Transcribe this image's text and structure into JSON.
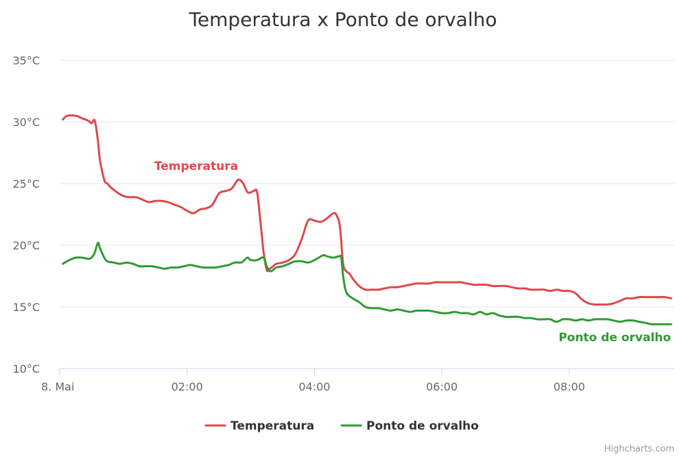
{
  "chart_data": {
    "type": "line",
    "title": "Temperatura x Ponto de orvalho",
    "ylim": [
      10,
      35
    ],
    "y_ticks": [
      "10°C",
      "15°C",
      "20°C",
      "25°C",
      "30°C",
      "35°C"
    ],
    "y_tick_values": [
      10,
      15,
      20,
      25,
      30,
      35
    ],
    "xlim": [
      0,
      9.65
    ],
    "x_ticks": [
      "8. Mai",
      "02:00",
      "04:00",
      "06:00",
      "08:00"
    ],
    "x_tick_values": [
      0,
      2,
      4,
      6,
      8
    ],
    "grid": true,
    "legend_position": "bottom-center",
    "series": [
      {
        "name": "Temperatura",
        "label": "Temperatura",
        "color": "#e0474c",
        "x": [
          0.05,
          0.12,
          0.25,
          0.35,
          0.45,
          0.5,
          0.55,
          0.6,
          0.63,
          0.7,
          0.75,
          0.8,
          0.9,
          1.0,
          1.1,
          1.2,
          1.3,
          1.4,
          1.5,
          1.6,
          1.7,
          1.8,
          1.9,
          2.0,
          2.1,
          2.2,
          2.3,
          2.4,
          2.5,
          2.6,
          2.7,
          2.8,
          2.87,
          2.9,
          2.95,
          3.0,
          3.05,
          3.1,
          3.15,
          3.18,
          3.2,
          3.25,
          3.3,
          3.35,
          3.4,
          3.5,
          3.6,
          3.7,
          3.8,
          3.9,
          4.0,
          4.1,
          4.2,
          4.3,
          4.35,
          4.4,
          4.45,
          4.5,
          4.55,
          4.6,
          4.7,
          4.8,
          4.9,
          5.0,
          5.1,
          5.2,
          5.3,
          5.4,
          5.5,
          5.6,
          5.7,
          5.8,
          5.9,
          6.0,
          6.1,
          6.2,
          6.3,
          6.4,
          6.5,
          6.6,
          6.7,
          6.8,
          6.9,
          7.0,
          7.1,
          7.2,
          7.3,
          7.4,
          7.5,
          7.6,
          7.7,
          7.8,
          7.9,
          8.0,
          8.1,
          8.2,
          8.3,
          8.4,
          8.5,
          8.6,
          8.7,
          8.8,
          8.9,
          9.0,
          9.1,
          9.2,
          9.3,
          9.4,
          9.5,
          9.6
        ],
        "y": [
          30.2,
          30.5,
          30.5,
          30.3,
          30.1,
          29.9,
          30.1,
          28.5,
          27.0,
          25.3,
          25.0,
          24.7,
          24.3,
          24.0,
          23.9,
          23.9,
          23.7,
          23.5,
          23.6,
          23.6,
          23.5,
          23.3,
          23.1,
          22.8,
          22.6,
          22.9,
          23.0,
          23.3,
          24.2,
          24.4,
          24.6,
          25.3,
          25.1,
          24.8,
          24.3,
          24.3,
          24.4,
          24.3,
          22.0,
          20.5,
          19.5,
          18.0,
          18.1,
          18.3,
          18.5,
          18.6,
          18.8,
          19.3,
          20.5,
          22.0,
          22.0,
          21.9,
          22.2,
          22.6,
          22.4,
          21.5,
          18.5,
          17.9,
          17.7,
          17.3,
          16.7,
          16.4,
          16.4,
          16.4,
          16.5,
          16.6,
          16.6,
          16.7,
          16.8,
          16.9,
          16.9,
          16.9,
          17.0,
          17.0,
          17.0,
          17.0,
          17.0,
          16.9,
          16.8,
          16.8,
          16.8,
          16.7,
          16.7,
          16.7,
          16.6,
          16.5,
          16.5,
          16.4,
          16.4,
          16.4,
          16.3,
          16.4,
          16.3,
          16.3,
          16.1,
          15.6,
          15.3,
          15.2,
          15.2,
          15.2,
          15.3,
          15.5,
          15.7,
          15.7,
          15.8,
          15.8,
          15.8,
          15.8,
          15.8,
          15.7
        ]
      },
      {
        "name": "Ponto de orvalho",
        "label": "Ponto de orvalho",
        "color": "#2f9a34",
        "x": [
          0.05,
          0.15,
          0.25,
          0.35,
          0.45,
          0.5,
          0.55,
          0.6,
          0.63,
          0.7,
          0.75,
          0.85,
          0.95,
          1.05,
          1.15,
          1.25,
          1.35,
          1.45,
          1.55,
          1.65,
          1.75,
          1.85,
          1.95,
          2.05,
          2.15,
          2.25,
          2.35,
          2.45,
          2.55,
          2.65,
          2.75,
          2.85,
          2.9,
          2.95,
          3.0,
          3.1,
          3.2,
          3.25,
          3.3,
          3.35,
          3.4,
          3.5,
          3.6,
          3.7,
          3.8,
          3.9,
          4.0,
          4.1,
          4.15,
          4.2,
          4.3,
          4.38,
          4.42,
          4.45,
          4.5,
          4.6,
          4.7,
          4.8,
          4.9,
          5.0,
          5.1,
          5.2,
          5.3,
          5.4,
          5.5,
          5.6,
          5.7,
          5.8,
          5.9,
          6.0,
          6.1,
          6.2,
          6.3,
          6.4,
          6.5,
          6.6,
          6.7,
          6.8,
          6.9,
          7.0,
          7.1,
          7.2,
          7.3,
          7.4,
          7.5,
          7.6,
          7.7,
          7.8,
          7.9,
          8.0,
          8.1,
          8.2,
          8.3,
          8.4,
          8.5,
          8.6,
          8.7,
          8.8,
          8.9,
          9.0,
          9.1,
          9.2,
          9.3,
          9.4,
          9.5,
          9.6
        ],
        "y": [
          18.5,
          18.8,
          19.0,
          19.0,
          18.9,
          19.0,
          19.4,
          20.2,
          19.8,
          19.0,
          18.7,
          18.6,
          18.5,
          18.6,
          18.5,
          18.3,
          18.3,
          18.3,
          18.2,
          18.1,
          18.2,
          18.2,
          18.3,
          18.4,
          18.3,
          18.2,
          18.2,
          18.2,
          18.3,
          18.4,
          18.6,
          18.6,
          18.8,
          19.0,
          18.8,
          18.8,
          19.0,
          18.3,
          17.9,
          18.0,
          18.2,
          18.3,
          18.5,
          18.7,
          18.7,
          18.6,
          18.8,
          19.1,
          19.2,
          19.1,
          19.0,
          19.1,
          19.0,
          17.5,
          16.2,
          15.7,
          15.4,
          15.0,
          14.9,
          14.9,
          14.8,
          14.7,
          14.8,
          14.7,
          14.6,
          14.7,
          14.7,
          14.7,
          14.6,
          14.5,
          14.5,
          14.6,
          14.5,
          14.5,
          14.4,
          14.6,
          14.4,
          14.5,
          14.3,
          14.2,
          14.2,
          14.2,
          14.1,
          14.1,
          14.0,
          14.0,
          14.0,
          13.8,
          14.0,
          14.0,
          13.9,
          14.0,
          13.9,
          14.0,
          14.0,
          14.0,
          13.9,
          13.8,
          13.9,
          13.9,
          13.8,
          13.7,
          13.6,
          13.6,
          13.6,
          13.6
        ]
      }
    ]
  },
  "legend": {
    "items": [
      {
        "label": "Temperatura",
        "color": "#e0474c"
      },
      {
        "label": "Ponto de orvalho",
        "color": "#2f9a34"
      }
    ]
  },
  "credits": "Highcharts.com"
}
